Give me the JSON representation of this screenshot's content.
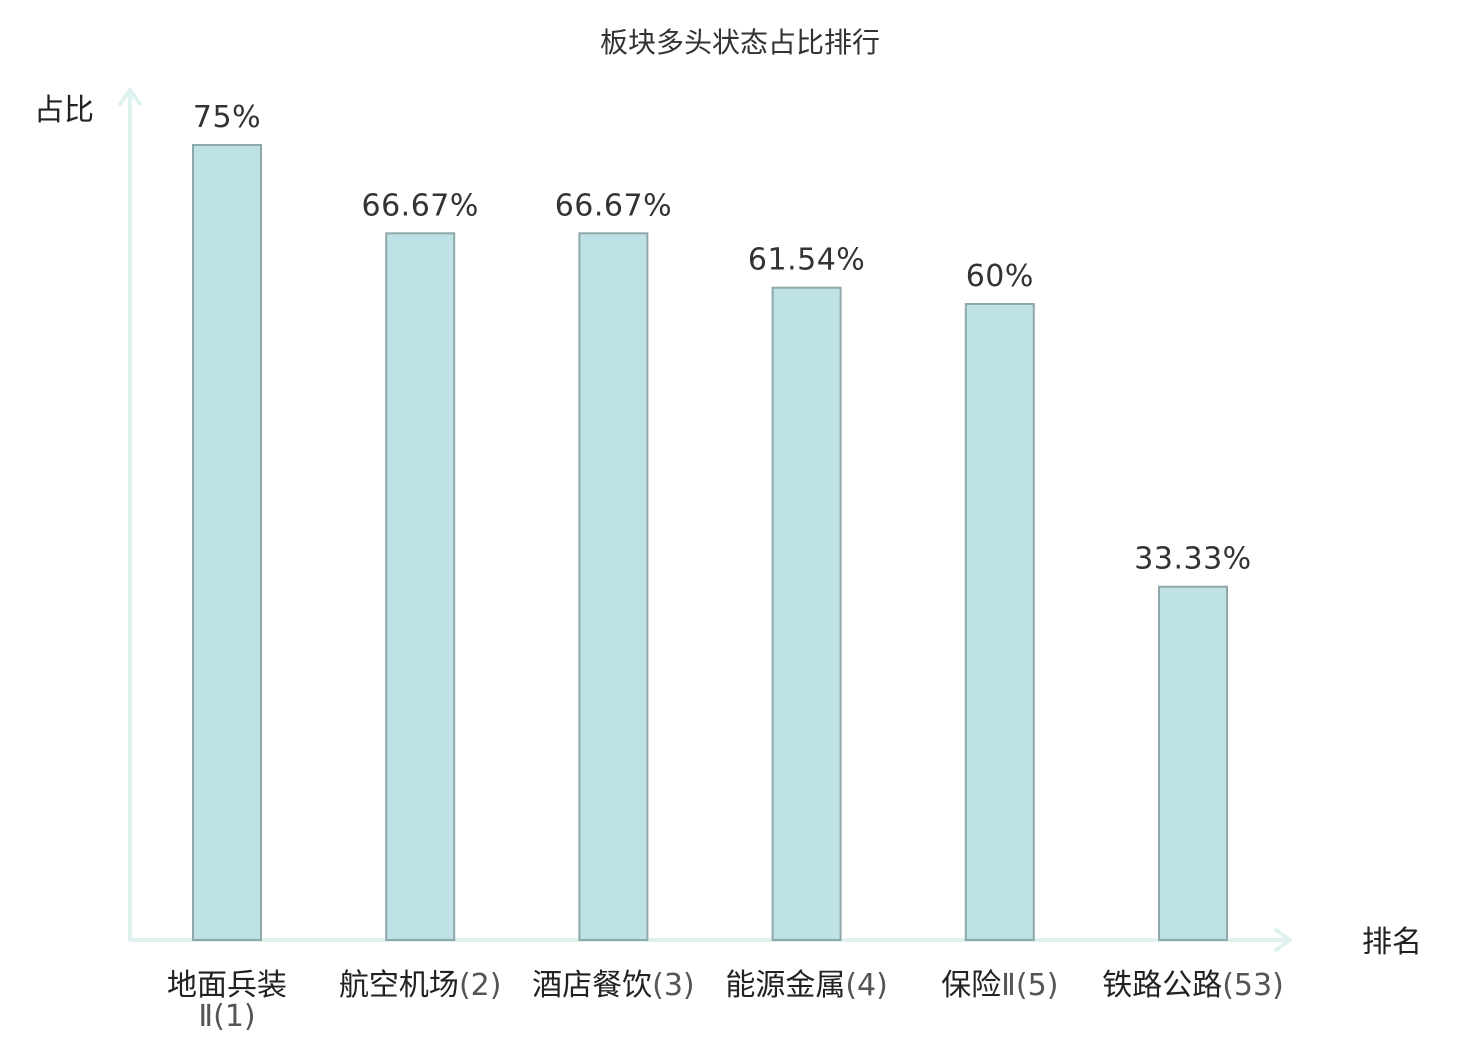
{
  "chart_data": {
    "type": "bar",
    "title": "板块多头状态占比排行",
    "ylabel": "占比",
    "xlabel": "排名",
    "ylim": [
      0,
      80
    ],
    "grid": false,
    "categories": [
      {
        "name": "地面兵装",
        "suffix": "Ⅱ(1)",
        "wrap": true,
        "highlight": false
      },
      {
        "name": "航空机场",
        "suffix": "(2)",
        "wrap": false,
        "highlight": false
      },
      {
        "name": "酒店餐饮",
        "suffix": "(3)",
        "wrap": false,
        "highlight": false
      },
      {
        "name": "能源金属",
        "suffix": "(4)",
        "wrap": false,
        "highlight": false
      },
      {
        "name": "保险",
        "suffix": "Ⅱ(5)",
        "wrap": false,
        "highlight": false
      },
      {
        "name": "铁路公路",
        "suffix": "(53)",
        "wrap": false,
        "highlight": true
      }
    ],
    "values": [
      75,
      66.67,
      66.67,
      61.54,
      60,
      33.33
    ],
    "value_labels": [
      "75%",
      "66.67%",
      "66.67%",
      "61.54%",
      "60%",
      "33.33%"
    ],
    "colors": {
      "bar_fill": "#bde1e4",
      "bar_stroke": "#8fa9ab",
      "axis": "#dff2f0",
      "highlight_text": "#e8231f"
    }
  }
}
